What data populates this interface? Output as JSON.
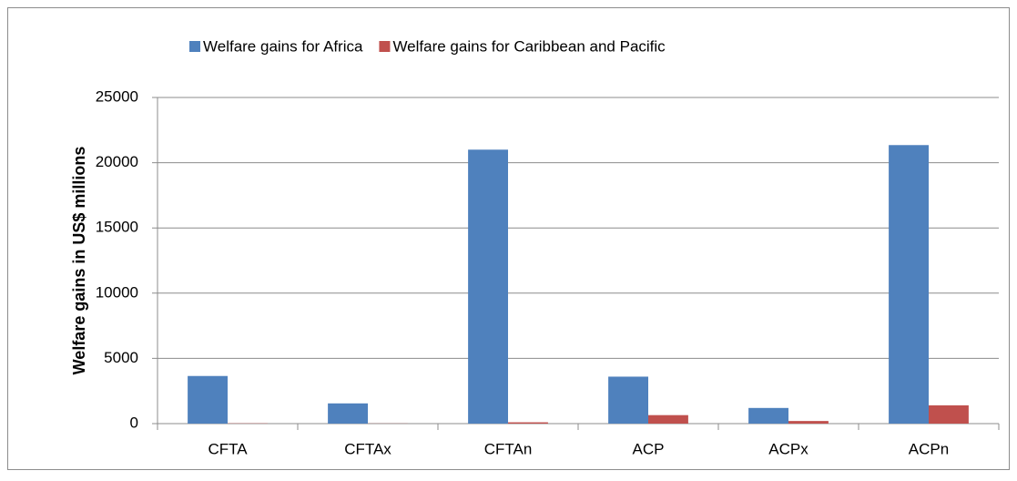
{
  "chart_data": {
    "type": "bar",
    "categories": [
      "CFTA",
      "CFTAx",
      "CFTAn",
      "ACP",
      "ACPx",
      "ACPn"
    ],
    "series": [
      {
        "name": "Welfare gains for Africa",
        "color": "#4f81bd",
        "values": [
          3650,
          1550,
          21000,
          3600,
          1200,
          21350
        ]
      },
      {
        "name": "Welfare gains for Caribbean and Pacific",
        "color": "#c0504d",
        "values": [
          20,
          10,
          100,
          650,
          200,
          1400
        ]
      }
    ],
    "y_label": "Welfare gains in US$ millions",
    "ylim": [
      0,
      25000
    ],
    "yticks": [
      0,
      5000,
      10000,
      15000,
      20000,
      25000
    ],
    "grid": true,
    "legend": "top"
  }
}
